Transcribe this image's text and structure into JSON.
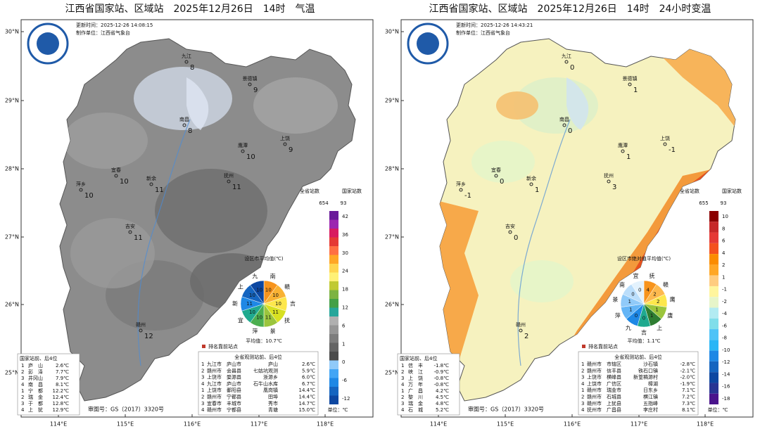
{
  "panels": [
    {
      "title": "江西省国家站、区域站　2025年12月26日　14时　气温",
      "update": "更新时间：2025-12-26 14:08:15",
      "producer": "制作单位：江西省气象台",
      "lat_labels": [
        "30°N",
        "29°N",
        "28°N",
        "27°N",
        "26°N",
        "25°N"
      ],
      "lon_labels": [
        "114°E",
        "115°E",
        "116°E",
        "117°E",
        "118°E"
      ],
      "legend_header": {
        "province": "全省站数",
        "province_count": "654",
        "national": "国家站数",
        "national_count": "93"
      },
      "colorbar": {
        "labels": [
          "42",
          "36",
          "30",
          "24",
          "18",
          "12",
          "6",
          "1",
          "0",
          "-6",
          "-12"
        ],
        "colors": [
          "#6a1b9a",
          "#9c27b0",
          "#d81b60",
          "#e53935",
          "#ff7043",
          "#ffa726",
          "#ffd54f",
          "#fff176",
          "#c0ca33",
          "#7cb342",
          "#43a047",
          "#26a69a",
          "#b0b0b0",
          "#969696",
          "#7d7d7d",
          "#646464",
          "#4b4b4b",
          "#90caf9",
          "#42a5f5",
          "#1e88e5",
          "#1565c0",
          "#0d47a1"
        ],
        "unit": "单位：℃"
      },
      "stations": [
        {
          "name": "九江",
          "value": "8"
        },
        {
          "name": "景德镇",
          "value": "9"
        },
        {
          "name": "南昌",
          "value": "8"
        },
        {
          "name": "上饶",
          "value": "9"
        },
        {
          "name": "鹰潭",
          "value": "10"
        },
        {
          "name": "宜春",
          "value": "10"
        },
        {
          "name": "新余",
          "value": "11"
        },
        {
          "name": "萍乡",
          "value": "10"
        },
        {
          "name": "抚州",
          "value": "11"
        },
        {
          "name": "吉安",
          "value": "11"
        },
        {
          "name": "赣州",
          "value": "12"
        }
      ],
      "pie": {
        "title": "设区市平均值(℃)",
        "average": "平均值：10.7℃",
        "slices": [
          {
            "name": "南",
            "value": "10",
            "color": "#f7941d"
          },
          {
            "name": "赣",
            "value": "10",
            "color": "#f9b233"
          },
          {
            "name": "吉",
            "value": "10",
            "color": "#fde74c"
          },
          {
            "name": "抚",
            "value": "11",
            "color": "#d7e021"
          },
          {
            "name": "景",
            "value": "11",
            "color": "#9bc53d"
          },
          {
            "name": "萍",
            "value": "10",
            "color": "#4caf50"
          },
          {
            "name": "宜",
            "value": "10",
            "color": "#1faa8f"
          },
          {
            "name": "新",
            "value": "11",
            "color": "#1e88e5"
          },
          {
            "name": "上",
            "value": "10",
            "color": "#1565c0"
          },
          {
            "name": "九",
            "value": "10",
            "color": "#0d47a1"
          }
        ]
      },
      "national_table": {
        "title": "国家站前、后4位",
        "rows": [
          [
            "1",
            "庐　山",
            "2.6℃"
          ],
          [
            "2",
            "彭　泽",
            "7.7℃"
          ],
          [
            "3",
            "井冈山",
            "7.9℃"
          ],
          [
            "4",
            "南　昌",
            "8.1℃"
          ],
          [
            "1",
            "宁　都",
            "12.2℃"
          ],
          [
            "2",
            "瑞　金",
            "12.4℃"
          ],
          [
            "3",
            "于　都",
            "12.8℃"
          ],
          [
            "4",
            "上　犹",
            "12.9℃"
          ]
        ]
      },
      "province_note": "排名靠前站点",
      "province_table": {
        "title": "全省观测站前、后4位",
        "rows": [
          [
            "1",
            "九江市",
            "庐山市",
            "庐山",
            "2.6℃"
          ],
          [
            "2",
            "赣州市",
            "会昌县",
            "七姑坑观测",
            "5.9℃"
          ],
          [
            "3",
            "上饶市",
            "婺源县",
            "浙源乡",
            "6.0℃"
          ],
          [
            "4",
            "九江市",
            "庐山市",
            "石牛山水库",
            "6.7℃"
          ],
          [
            "1",
            "上饶市",
            "鄱阳县",
            "凰岗镇",
            "14.4℃"
          ],
          [
            "2",
            "赣州市",
            "宁都县",
            "田埠",
            "14.4℃"
          ],
          [
            "3",
            "宜春市",
            "丰城市",
            "秀市",
            "14.7℃"
          ],
          [
            "4",
            "赣州市",
            "宁都县",
            "青塘",
            "15.0℃"
          ]
        ]
      },
      "approval": "审图号：GS（2017）3320号"
    },
    {
      "title": "江西省国家站、区域站　2025年12月26日　14时　24小时变温",
      "update": "更新时间：2025-12-26 14:43:21",
      "producer": "制作单位：江西省气象台",
      "lat_labels": [
        "30°N",
        "29°N",
        "28°N",
        "27°N",
        "26°N",
        "25°N"
      ],
      "lon_labels": [
        "114°E",
        "115°E",
        "116°E",
        "117°E",
        "118°E"
      ],
      "legend_header": {
        "province": "全省站数",
        "province_count": "655",
        "national": "国家站数",
        "national_count": "93"
      },
      "colorbar": {
        "labels": [
          "10",
          "8",
          "6",
          "4",
          "2",
          "1",
          "-1",
          "-2",
          "-4",
          "-6",
          "-8",
          "-10",
          "-12",
          "-14",
          "-16",
          "-18"
        ],
        "colors": [
          "#8b0000",
          "#c62828",
          "#e53935",
          "#f4511e",
          "#fb8c00",
          "#ffa726",
          "#ffcc80",
          "#fff59d",
          "#e6f5c9",
          "#b2ebf2",
          "#80deea",
          "#4fc3f7",
          "#29b6f6",
          "#1e88e5",
          "#1565c0",
          "#0d47a1",
          "#283593",
          "#4a148c"
        ],
        "unit": "单位：℃"
      },
      "stations": [
        {
          "name": "九江",
          "value": "0"
        },
        {
          "name": "景德镇",
          "value": "1"
        },
        {
          "name": "南昌",
          "value": "0"
        },
        {
          "name": "上饶",
          "value": "-1"
        },
        {
          "name": "鹰潭",
          "value": "1"
        },
        {
          "name": "宜春",
          "value": "0"
        },
        {
          "name": "新余",
          "value": "1"
        },
        {
          "name": "萍乡",
          "value": "-1"
        },
        {
          "name": "抚州",
          "value": "3"
        },
        {
          "name": "吉安",
          "value": "0"
        },
        {
          "name": "赣州",
          "value": "2"
        }
      ],
      "pie": {
        "title": "设区市绝对值平均值(℃)",
        "average": "平均值：1.1℃",
        "slices": [
          {
            "name": "抚",
            "value": "4",
            "color": "#f7941d"
          },
          {
            "name": "赣",
            "value": "2",
            "color": "#fdb94e"
          },
          {
            "name": "鹰",
            "value": "2",
            "color": "#fde74c"
          },
          {
            "name": "唐",
            "value": "1",
            "color": "#9bc53d"
          },
          {
            "name": "上",
            "value": "1",
            "color": "#2e7d32"
          },
          {
            "name": "吉",
            "value": "0",
            "color": "#1faa8f"
          },
          {
            "name": "九",
            "value": "0",
            "color": "#1e88e5"
          },
          {
            "name": "萍",
            "value": "1",
            "color": "#64b5f6"
          },
          {
            "name": "景",
            "value": "1",
            "color": "#90caf9"
          },
          {
            "name": "南",
            "value": "0",
            "color": "#bbdefb"
          },
          {
            "name": "宜",
            "value": "0",
            "color": "#e3f2fd"
          }
        ]
      },
      "national_table": {
        "title": "国家站前、后4位",
        "rows": [
          [
            "1",
            "信　丰",
            "-1.8℃"
          ],
          [
            "2",
            "峡　江",
            "-0.9℃"
          ],
          [
            "3",
            "上　饶",
            "-0.8℃"
          ],
          [
            "4",
            "万　年",
            "-0.8℃"
          ],
          [
            "1",
            "广　昌",
            "4.2℃"
          ],
          [
            "2",
            "黎　川",
            "4.5℃"
          ],
          [
            "3",
            "瑞　金",
            "4.8℃"
          ],
          [
            "4",
            "石　城",
            "5.2℃"
          ]
        ]
      },
      "province_note": "排名靠前站点",
      "province_table": {
        "title": "全省观测站前、后4位",
        "rows": [
          [
            "1",
            "赣州市",
            "市辖区",
            "沙石镇",
            "-2.8℃"
          ],
          [
            "2",
            "赣州市",
            "信丰县",
            "铁石口镇",
            "-2.1℃"
          ],
          [
            "3",
            "上饶市",
            "横峰县",
            "新篁稿源村",
            "-2.0℃"
          ],
          [
            "4",
            "上饶市",
            "广信区",
            "樟湖",
            "-1.9℃"
          ],
          [
            "1",
            "赣州市",
            "瑞金市",
            "日东乡",
            "7.1℃"
          ],
          [
            "2",
            "赣州市",
            "石城县",
            "横江镇",
            "7.2℃"
          ],
          [
            "3",
            "赣州市",
            "上犹县",
            "五指峰",
            "7.3℃"
          ],
          [
            "4",
            "抚州市",
            "广昌县",
            "李庄村",
            "8.1℃"
          ]
        ]
      },
      "approval": "审图号：GS（2017）3320号"
    }
  ]
}
